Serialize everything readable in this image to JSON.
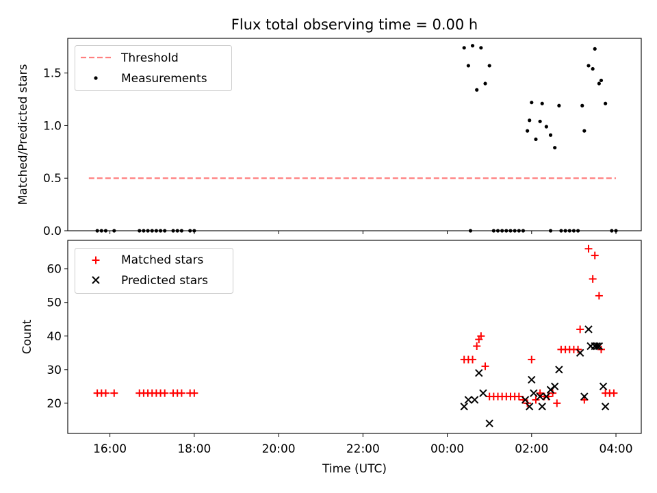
{
  "chart_data": [
    {
      "type": "scatter",
      "title": "Flux total observing time = 0.00 h",
      "xlabel": "",
      "ylabel": "Matched/Predicted stars",
      "x_unit": "hours since 00:00 UTC (negative = previous day)",
      "xlim": [
        -9.0,
        4.6
      ],
      "ylim": [
        0.0,
        1.83
      ],
      "yticks": [
        0.0,
        0.5,
        1.0,
        1.5
      ],
      "ytick_labels": [
        "0.0",
        "0.5",
        "1.0",
        "1.5"
      ],
      "legend_position": "upper-left",
      "grid": false,
      "series": [
        {
          "name": "Threshold",
          "kind": "line",
          "style": "dashed",
          "color": "#ff7f7f",
          "x": [
            -8.5,
            4.0
          ],
          "y": [
            0.5,
            0.5
          ]
        },
        {
          "name": "Measurements",
          "kind": "scatter",
          "marker": "dot",
          "color": "#000000",
          "x": [
            -8.3,
            -8.2,
            -8.1,
            -7.9,
            -7.3,
            -7.2,
            -7.1,
            -7.0,
            -6.9,
            -6.8,
            -6.7,
            -6.5,
            -6.4,
            -6.3,
            -6.1,
            -6.0,
            0.4,
            0.5,
            0.6,
            0.7,
            0.8,
            0.9,
            1.0,
            0.55,
            1.1,
            1.2,
            1.3,
            1.4,
            1.5,
            1.6,
            1.7,
            1.8,
            1.9,
            1.95,
            2.0,
            2.1,
            2.2,
            2.25,
            2.35,
            2.45,
            2.55,
            2.65,
            2.45,
            2.7,
            2.8,
            2.9,
            3.0,
            3.1,
            3.2,
            3.25,
            3.35,
            3.45,
            3.5,
            3.6,
            3.65,
            3.75,
            3.9,
            4.0
          ],
          "y": [
            0,
            0,
            0,
            0,
            0,
            0,
            0,
            0,
            0,
            0,
            0,
            0,
            0,
            0,
            0,
            0,
            1.74,
            1.57,
            1.76,
            1.34,
            1.74,
            1.4,
            1.57,
            0,
            0,
            0,
            0,
            0,
            0,
            0,
            0,
            0,
            0.95,
            1.05,
            1.22,
            0.87,
            1.04,
            1.21,
            0.99,
            0.91,
            0.79,
            1.19,
            0,
            0,
            0,
            0,
            0,
            0,
            1.19,
            0.95,
            1.57,
            1.54,
            1.73,
            1.4,
            1.43,
            1.21,
            0,
            0
          ]
        }
      ]
    },
    {
      "type": "scatter",
      "title": "",
      "xlabel": "Time (UTC)",
      "ylabel": "Count",
      "x_unit": "hours since 00:00 UTC (negative = previous day)",
      "xlim": [
        -9.0,
        4.6
      ],
      "ylim": [
        11.0,
        68.5
      ],
      "xticks": [
        -8,
        -6,
        -4,
        -2,
        0,
        2,
        4
      ],
      "xtick_labels": [
        "16:00",
        "18:00",
        "20:00",
        "22:00",
        "00:00",
        "02:00",
        "04:00"
      ],
      "yticks": [
        20,
        30,
        40,
        50,
        60
      ],
      "ytick_labels": [
        "20",
        "30",
        "40",
        "50",
        "60"
      ],
      "legend_position": "upper-left",
      "grid": false,
      "series": [
        {
          "name": "Matched stars",
          "kind": "scatter",
          "marker": "plus",
          "color": "#ff0000",
          "x": [
            -8.3,
            -8.2,
            -8.1,
            -7.9,
            -7.3,
            -7.2,
            -7.1,
            -7.0,
            -6.9,
            -6.8,
            -6.7,
            -6.5,
            -6.4,
            -6.3,
            -6.1,
            -6.0,
            0.4,
            0.5,
            0.6,
            0.7,
            0.75,
            0.8,
            0.9,
            1.0,
            1.1,
            1.2,
            1.3,
            1.4,
            1.5,
            1.6,
            1.7,
            1.8,
            1.9,
            2.0,
            2.1,
            2.2,
            2.3,
            2.4,
            2.5,
            2.6,
            2.7,
            2.8,
            2.9,
            3.0,
            3.1,
            3.15,
            3.25,
            3.35,
            3.45,
            3.5,
            3.6,
            3.65,
            3.75,
            3.85,
            3.95
          ],
          "y": [
            23,
            23,
            23,
            23,
            23,
            23,
            23,
            23,
            23,
            23,
            23,
            23,
            23,
            23,
            23,
            23,
            33,
            33,
            33,
            37,
            39,
            40,
            31,
            22,
            22,
            22,
            22,
            22,
            22,
            22,
            22,
            21,
            20,
            33,
            21,
            23,
            22,
            22,
            23,
            20,
            36,
            36,
            36,
            36,
            36,
            42,
            21,
            66,
            57,
            64,
            52,
            36,
            23,
            23,
            23
          ]
        },
        {
          "name": "Predicted stars",
          "kind": "scatter",
          "marker": "x",
          "color": "#000000",
          "x": [
            0.4,
            0.5,
            0.65,
            0.75,
            0.85,
            1.0,
            1.85,
            1.95,
            2.0,
            2.05,
            2.2,
            2.25,
            2.35,
            2.45,
            2.55,
            2.65,
            3.15,
            3.25,
            3.35,
            3.4,
            3.5,
            3.55,
            3.6,
            3.7,
            3.75
          ],
          "y": [
            19,
            21,
            21,
            29,
            23,
            14,
            21,
            19,
            27,
            23,
            22,
            19,
            22,
            24,
            25,
            30,
            35,
            22,
            42,
            37,
            37,
            37,
            37,
            25,
            19
          ]
        }
      ]
    }
  ]
}
